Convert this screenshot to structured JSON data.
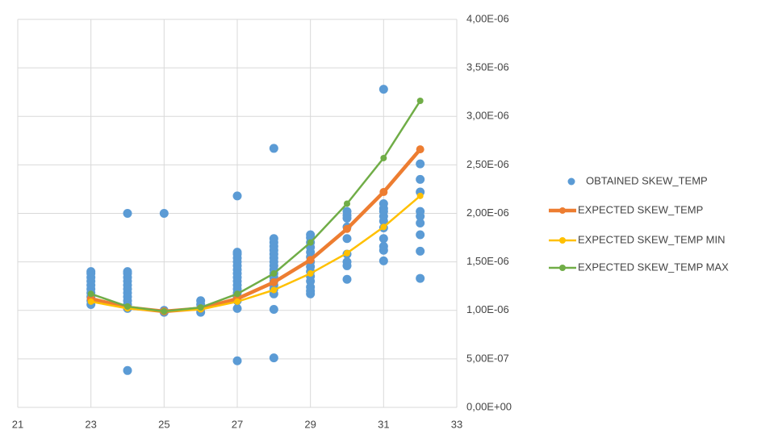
{
  "chart_data": {
    "type": "combo",
    "xlim": [
      21,
      33
    ],
    "xticks": [
      21,
      23,
      25,
      27,
      29,
      31,
      33
    ],
    "ylim": [
      0,
      4e-06
    ],
    "yticks": [
      {
        "value": 0,
        "label": "0,00E+00"
      },
      {
        "value": 5e-07,
        "label": "5,00E-07"
      },
      {
        "value": 1e-06,
        "label": "1,00E-06"
      },
      {
        "value": 1.5e-06,
        "label": "1,50E-06"
      },
      {
        "value": 2e-06,
        "label": "2,00E-06"
      },
      {
        "value": 2.5e-06,
        "label": "2,50E-06"
      },
      {
        "value": 3e-06,
        "label": "3,00E-06"
      },
      {
        "value": 3.5e-06,
        "label": "3,50E-06"
      },
      {
        "value": 4e-06,
        "label": "4,00E-06"
      }
    ],
    "grid": true,
    "legend": "right",
    "series": [
      {
        "name": "OBTAINED SKEW_TEMP",
        "type": "scatter",
        "color": "#5b9bd5",
        "x": [
          23,
          23,
          23,
          23,
          23,
          23,
          23,
          23,
          23,
          23,
          24,
          24,
          24,
          24,
          24,
          24,
          24,
          24,
          24,
          24,
          24,
          24,
          24,
          25,
          25,
          25,
          26,
          26,
          26,
          26,
          27,
          27,
          27,
          27,
          27,
          27,
          27,
          27,
          27,
          27,
          27,
          27,
          27,
          27,
          27,
          27,
          27,
          28,
          28,
          28,
          28,
          28,
          28,
          28,
          28,
          28,
          28,
          28,
          28,
          28,
          28,
          28,
          28,
          28,
          28,
          29,
          29,
          29,
          29,
          29,
          29,
          29,
          29,
          29,
          29,
          29,
          29,
          29,
          29,
          30,
          30,
          30,
          30,
          30,
          30,
          30,
          30,
          30,
          31,
          31,
          31,
          31,
          31,
          31,
          31,
          31,
          31,
          31,
          31,
          32,
          32,
          32,
          32,
          32,
          32,
          32,
          32,
          32
        ],
        "values": [
          1.06e-06,
          1.1e-06,
          1.14e-06,
          1.18e-06,
          1.22e-06,
          1.26e-06,
          1.3e-06,
          1.34e-06,
          1.38e-06,
          1.4e-06,
          2e-06,
          3.8e-07,
          1.02e-06,
          1.06e-06,
          1.1e-06,
          1.14e-06,
          1.18e-06,
          1.22e-06,
          1.26e-06,
          1.3e-06,
          1.34e-06,
          1.38e-06,
          1.4e-06,
          2e-06,
          9.8e-07,
          1e-06,
          9.8e-07,
          1.02e-06,
          1.06e-06,
          1.1e-06,
          2.18e-06,
          4.8e-07,
          1.02e-06,
          1.1e-06,
          1.14e-06,
          1.18e-06,
          1.22e-06,
          1.26e-06,
          1.3e-06,
          1.34e-06,
          1.38e-06,
          1.42e-06,
          1.46e-06,
          1.5e-06,
          1.54e-06,
          1.58e-06,
          1.6e-06,
          2.67e-06,
          5.1e-07,
          1.01e-06,
          1.17e-06,
          1.22e-06,
          1.26e-06,
          1.3e-06,
          1.34e-06,
          1.38e-06,
          1.42e-06,
          1.46e-06,
          1.5e-06,
          1.54e-06,
          1.58e-06,
          1.62e-06,
          1.66e-06,
          1.7e-06,
          1.74e-06,
          1.17e-06,
          1.2e-06,
          1.24e-06,
          1.3e-06,
          1.35e-06,
          1.4e-06,
          1.45e-06,
          1.5e-06,
          1.55e-06,
          1.6e-06,
          1.65e-06,
          1.7e-06,
          1.75e-06,
          1.78e-06,
          1.32e-06,
          1.46e-06,
          1.5e-06,
          1.58e-06,
          1.74e-06,
          1.86e-06,
          1.95e-06,
          1.98e-06,
          2.02e-06,
          3.28e-06,
          1.51e-06,
          1.62e-06,
          1.66e-06,
          1.74e-06,
          1.85e-06,
          1.92e-06,
          1.97e-06,
          2.02e-06,
          2.05e-06,
          2.1e-06,
          1.33e-06,
          1.61e-06,
          1.78e-06,
          1.9e-06,
          1.97e-06,
          2.02e-06,
          2.22e-06,
          2.35e-06,
          2.51e-06
        ]
      },
      {
        "name": "EXPECTED SKEW_TEMP",
        "type": "line",
        "color": "#ed7d31",
        "x": [
          23,
          24,
          25,
          26,
          27,
          28,
          29,
          30,
          31,
          32
        ],
        "values": [
          1.12e-06,
          1.03e-06,
          9.9e-07,
          1.02e-06,
          1.12e-06,
          1.29e-06,
          1.52e-06,
          1.84e-06,
          2.22e-06,
          2.66e-06
        ]
      },
      {
        "name": "EXPECTED SKEW_TEMP MIN",
        "type": "line",
        "color": "#ffc000",
        "x": [
          23,
          24,
          25,
          26,
          27,
          28,
          29,
          30,
          31,
          32
        ],
        "values": [
          1.09e-06,
          1.02e-06,
          9.9e-07,
          1.01e-06,
          1.09e-06,
          1.21e-06,
          1.38e-06,
          1.59e-06,
          1.86e-06,
          2.18e-06
        ]
      },
      {
        "name": "EXPECTED SKEW_TEMP MAX",
        "type": "line",
        "color": "#70ad47",
        "x": [
          23,
          24,
          25,
          26,
          27,
          28,
          29,
          30,
          31,
          32
        ],
        "values": [
          1.17e-06,
          1.04e-06,
          9.9e-07,
          1.03e-06,
          1.17e-06,
          1.38e-06,
          1.7e-06,
          2.1e-06,
          2.57e-06,
          3.16e-06
        ]
      }
    ]
  }
}
